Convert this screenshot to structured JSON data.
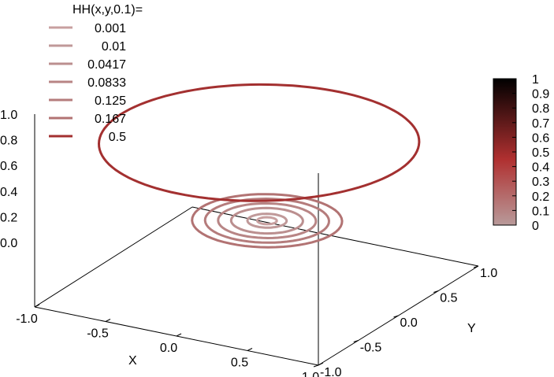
{
  "chart_data": {
    "type": "3d-contour",
    "title": "HH(x,y,0.1)=",
    "xlabel": "X",
    "ylabel": "Y",
    "zlabel": "",
    "xlim": [
      -1.0,
      1.0
    ],
    "ylim": [
      -1.0,
      1.0
    ],
    "zlim": [
      0.0,
      1.0
    ],
    "x_ticks": [
      "-1.0",
      "-0.5",
      "0.0",
      "0.5",
      "1.0"
    ],
    "y_ticks": [
      "-1.0",
      "-0.5",
      "0.0",
      "0.5",
      "1.0"
    ],
    "z_ticks": [
      "1.0",
      "0.8",
      "0.6",
      "0.4",
      "0.2",
      "0.0"
    ],
    "series": [
      {
        "name": "0.001",
        "level": 0.001
      },
      {
        "name": "0.01",
        "level": 0.01
      },
      {
        "name": "0.0417",
        "level": 0.0417
      },
      {
        "name": "0.0833",
        "level": 0.0833
      },
      {
        "name": "0.125",
        "level": 0.125
      },
      {
        "name": "0.167",
        "level": 0.167
      },
      {
        "name": "0.5",
        "level": 0.5
      }
    ],
    "colorbar": {
      "ticks": [
        "1",
        "0.9",
        "0.8",
        "0.7",
        "0.6",
        "0.5",
        "0.4",
        "0.3",
        "0.2",
        "0.1",
        "0"
      ],
      "range": [
        0,
        1
      ],
      "colors": {
        "low": "#b89a9a",
        "mid": "#b03030",
        "high": "#000000"
      }
    },
    "line_colors": {
      "low": "#c09a9a",
      "mid": "#b87070",
      "high": "#a03030"
    },
    "grid": false,
    "legend_position": "top-left"
  }
}
